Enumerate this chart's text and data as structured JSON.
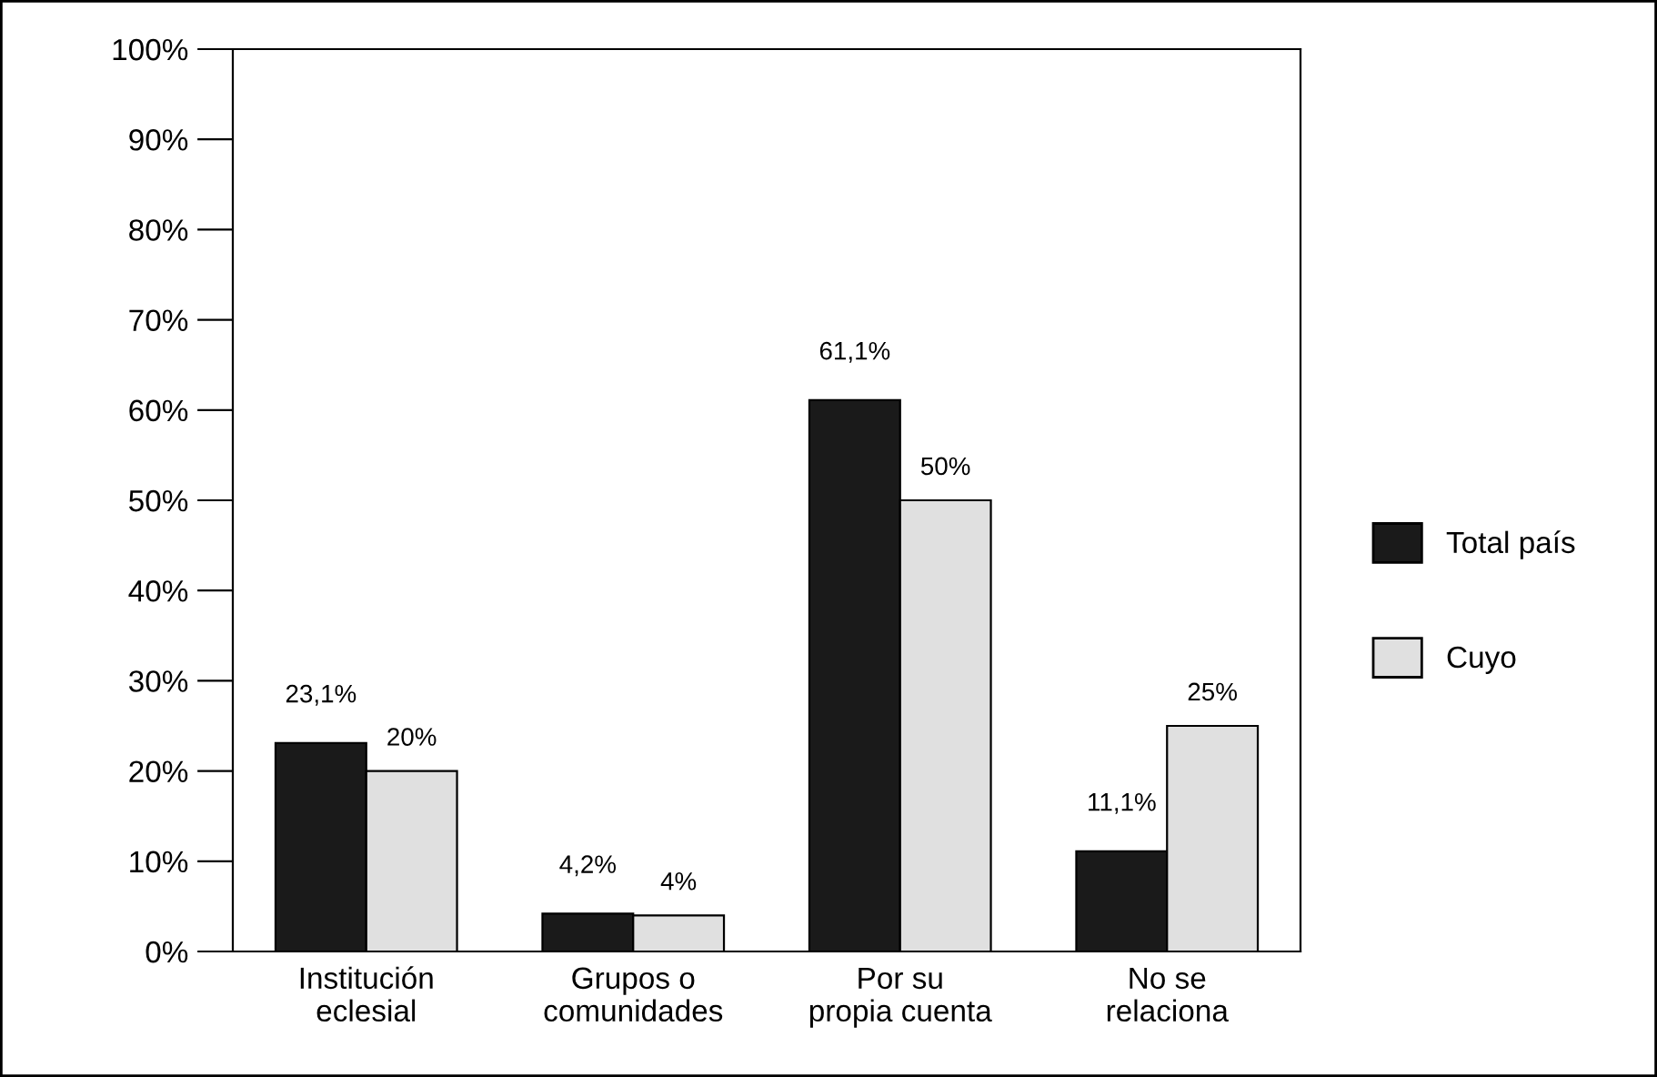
{
  "chart_data": {
    "type": "bar",
    "categories": [
      "Institución\neclesial",
      "Grupos o\ncomunidades",
      "Por su\npropia cuenta",
      "No se\nrelaciona"
    ],
    "series": [
      {
        "name": "Total país",
        "color": "#1a1a1a",
        "values": [
          23.1,
          4.2,
          61.1,
          11.1
        ],
        "value_labels": [
          "23,1%",
          "4,2%",
          "61,1%",
          "11,1%"
        ]
      },
      {
        "name": "Cuyo",
        "color": "#e0e0e0",
        "values": [
          20,
          4,
          50,
          25
        ],
        "value_labels": [
          "20%",
          "4%",
          "50%",
          "25%"
        ]
      }
    ],
    "ylim": [
      0,
      100
    ],
    "yticks": [
      {
        "value": 0,
        "label": "0%"
      },
      {
        "value": 10,
        "label": "10%"
      },
      {
        "value": 20,
        "label": "20%"
      },
      {
        "value": 30,
        "label": "30%"
      },
      {
        "value": 40,
        "label": "40%"
      },
      {
        "value": 50,
        "label": "50%"
      },
      {
        "value": 60,
        "label": "60%"
      },
      {
        "value": 70,
        "label": "70%"
      },
      {
        "value": 80,
        "label": "80%"
      },
      {
        "value": 90,
        "label": "90%"
      },
      {
        "value": 100,
        "label": "100%"
      }
    ],
    "grid": false,
    "legend": "right"
  }
}
